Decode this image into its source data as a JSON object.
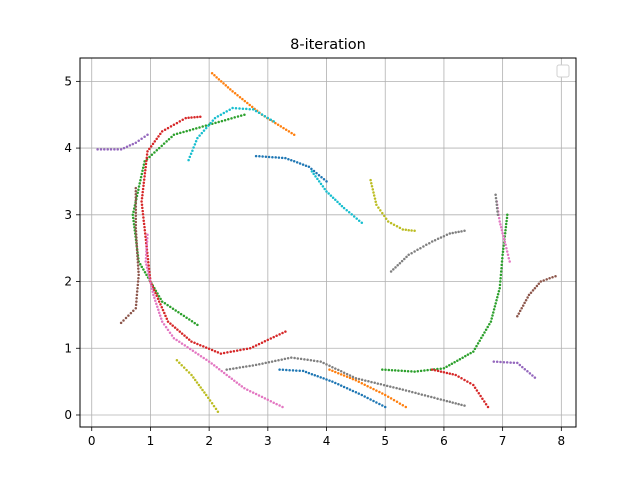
{
  "chart_data": {
    "type": "scatter",
    "title": "8-iteration",
    "xlabel": "",
    "ylabel": "",
    "xlim": [
      -0.2,
      8.25
    ],
    "ylim": [
      -0.18,
      5.35
    ],
    "xticks": [
      0,
      1,
      2,
      3,
      4,
      5,
      6,
      7,
      8
    ],
    "yticks": [
      0,
      1,
      2,
      3,
      4,
      5
    ],
    "grid": true,
    "legend": "top-right",
    "marker": "dots",
    "series": [
      {
        "color": "#1f77b4",
        "points": [
          [
            2.8,
            3.88
          ],
          [
            3.3,
            3.85
          ],
          [
            3.7,
            3.72
          ],
          [
            4.0,
            3.5
          ]
        ]
      },
      {
        "color": "#1f77b4",
        "points": [
          [
            3.2,
            0.68
          ],
          [
            3.6,
            0.66
          ],
          [
            4.1,
            0.5
          ],
          [
            4.6,
            0.3
          ],
          [
            5.0,
            0.12
          ]
        ]
      },
      {
        "color": "#ff7f0e",
        "points": [
          [
            2.05,
            5.12
          ],
          [
            2.4,
            4.85
          ],
          [
            2.9,
            4.5
          ],
          [
            3.45,
            4.2
          ]
        ]
      },
      {
        "color": "#ff7f0e",
        "points": [
          [
            4.05,
            0.68
          ],
          [
            4.5,
            0.52
          ],
          [
            5.0,
            0.3
          ],
          [
            5.35,
            0.12
          ]
        ]
      },
      {
        "color": "#2ca02c",
        "points": [
          [
            1.8,
            1.35
          ],
          [
            1.2,
            1.7
          ],
          [
            0.8,
            2.3
          ],
          [
            0.7,
            3.0
          ],
          [
            0.9,
            3.8
          ],
          [
            1.4,
            4.2
          ],
          [
            2.0,
            4.35
          ],
          [
            2.6,
            4.5
          ]
        ]
      },
      {
        "color": "#2ca02c",
        "points": [
          [
            4.95,
            0.68
          ],
          [
            5.5,
            0.65
          ],
          [
            6.0,
            0.7
          ],
          [
            6.5,
            0.95
          ],
          [
            6.8,
            1.4
          ],
          [
            6.95,
            1.9
          ],
          [
            7.0,
            2.4
          ],
          [
            7.08,
            3.0
          ]
        ]
      },
      {
        "color": "#d62728",
        "points": [
          [
            1.85,
            4.47
          ],
          [
            1.6,
            4.45
          ],
          [
            1.2,
            4.25
          ],
          [
            0.95,
            3.95
          ],
          [
            0.85,
            3.2
          ],
          [
            1.0,
            2.0
          ],
          [
            1.3,
            1.4
          ],
          [
            1.7,
            1.1
          ],
          [
            2.2,
            0.92
          ],
          [
            2.7,
            1.0
          ],
          [
            3.3,
            1.25
          ]
        ]
      },
      {
        "color": "#d62728",
        "points": [
          [
            5.8,
            0.68
          ],
          [
            6.2,
            0.6
          ],
          [
            6.5,
            0.45
          ],
          [
            6.75,
            0.12
          ]
        ]
      },
      {
        "color": "#9467bd",
        "points": [
          [
            0.1,
            3.98
          ],
          [
            0.5,
            3.98
          ],
          [
            0.75,
            4.08
          ],
          [
            0.95,
            4.2
          ]
        ]
      },
      {
        "color": "#9467bd",
        "points": [
          [
            6.85,
            0.8
          ],
          [
            7.25,
            0.78
          ],
          [
            7.55,
            0.56
          ]
        ]
      },
      {
        "color": "#8c564b",
        "points": [
          [
            0.5,
            1.38
          ],
          [
            0.75,
            1.6
          ],
          [
            0.8,
            2.1
          ],
          [
            0.75,
            2.8
          ],
          [
            0.75,
            3.4
          ]
        ]
      },
      {
        "color": "#8c564b",
        "points": [
          [
            7.25,
            1.48
          ],
          [
            7.45,
            1.8
          ],
          [
            7.65,
            2.0
          ],
          [
            7.9,
            2.08
          ]
        ]
      },
      {
        "color": "#e377c2",
        "points": [
          [
            0.95,
            2.7
          ],
          [
            0.92,
            2.3
          ],
          [
            1.05,
            1.8
          ],
          [
            1.2,
            1.4
          ],
          [
            1.4,
            1.15
          ],
          [
            2.0,
            0.8
          ],
          [
            2.6,
            0.4
          ],
          [
            3.25,
            0.12
          ]
        ]
      },
      {
        "color": "#e377c2",
        "points": [
          [
            6.9,
            3.2
          ],
          [
            6.95,
            2.9
          ],
          [
            7.05,
            2.55
          ],
          [
            7.12,
            2.3
          ]
        ]
      },
      {
        "color": "#7f7f7f",
        "points": [
          [
            2.3,
            0.68
          ],
          [
            2.8,
            0.75
          ],
          [
            3.4,
            0.86
          ],
          [
            3.9,
            0.8
          ],
          [
            4.5,
            0.55
          ],
          [
            5.3,
            0.38
          ],
          [
            6.0,
            0.22
          ],
          [
            6.35,
            0.14
          ]
        ]
      },
      {
        "color": "#7f7f7f",
        "points": [
          [
            5.1,
            2.15
          ],
          [
            5.4,
            2.4
          ],
          [
            5.8,
            2.6
          ],
          [
            6.1,
            2.72
          ],
          [
            6.35,
            2.76
          ]
        ]
      },
      {
        "color": "#7f7f7f",
        "points": [
          [
            6.88,
            3.3
          ],
          [
            6.92,
            3.0
          ]
        ]
      },
      {
        "color": "#bcbd22",
        "points": [
          [
            1.45,
            0.82
          ],
          [
            1.7,
            0.6
          ],
          [
            1.95,
            0.3
          ],
          [
            2.15,
            0.05
          ]
        ]
      },
      {
        "color": "#bcbd22",
        "points": [
          [
            4.75,
            3.52
          ],
          [
            4.85,
            3.15
          ],
          [
            5.05,
            2.9
          ],
          [
            5.3,
            2.78
          ],
          [
            5.5,
            2.76
          ]
        ]
      },
      {
        "color": "#17becf",
        "points": [
          [
            1.65,
            3.82
          ],
          [
            1.8,
            4.15
          ],
          [
            2.1,
            4.45
          ],
          [
            2.4,
            4.6
          ],
          [
            2.75,
            4.58
          ],
          [
            3.1,
            4.4
          ]
        ]
      },
      {
        "color": "#17becf",
        "points": [
          [
            3.75,
            3.65
          ],
          [
            4.0,
            3.35
          ],
          [
            4.3,
            3.1
          ],
          [
            4.6,
            2.88
          ]
        ]
      }
    ]
  }
}
